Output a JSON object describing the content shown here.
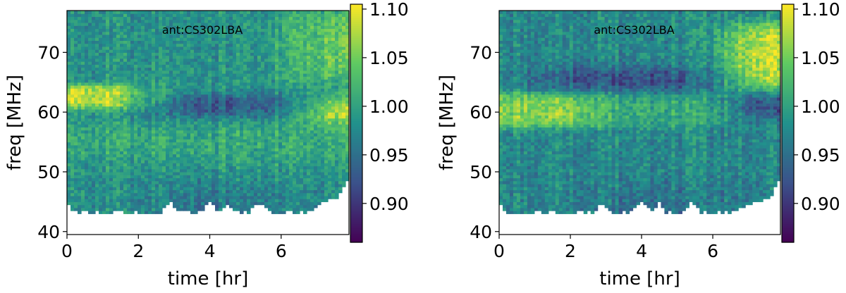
{
  "figure": {
    "colormap": [
      "#440154",
      "#3b528b",
      "#21918c",
      "#5ec962",
      "#fde725"
    ]
  },
  "chart_data": [
    {
      "type": "heatmap",
      "title": "",
      "annotation": "ant:CS302LBA",
      "xlabel": "time [hr]",
      "ylabel": "freq [MHz]",
      "xlim": [
        0,
        7.9
      ],
      "ylim": [
        39.5,
        77
      ],
      "xticks": [
        0,
        2,
        4,
        6
      ],
      "xtick_labels": [
        "0",
        "2",
        "4",
        "6"
      ],
      "yticks": [
        40,
        50,
        60,
        70
      ],
      "ytick_labels": [
        "40",
        "50",
        "60",
        "70"
      ],
      "colorbar": {
        "range": [
          0.86,
          1.105
        ],
        "ticks": [
          0.9,
          0.95,
          1.0,
          1.05,
          1.1
        ],
        "tick_labels": [
          "0.90",
          "0.95",
          "1.00",
          "1.05",
          "1.10"
        ]
      },
      "features": [
        {
          "description": "bright band",
          "freq_range_MHz": [
            60.5,
            65
          ],
          "time_range_hr": [
            0,
            1.5
          ],
          "value": 1.09
        },
        {
          "description": "dark band",
          "freq_range_MHz": [
            59,
            63
          ],
          "time_range_hr": [
            3,
            6
          ],
          "value": 0.92
        },
        {
          "description": "bright patch",
          "freq_range_MHz": [
            58,
            62
          ],
          "time_range_hr": [
            7,
            7.9
          ],
          "value": 1.08
        },
        {
          "description": "bright patch",
          "freq_range_MHz": [
            66,
            76
          ],
          "time_range_hr": [
            6.5,
            7.9
          ],
          "value": 1.06
        }
      ]
    },
    {
      "type": "heatmap",
      "title": "",
      "annotation": "ant:CS302LBA",
      "xlabel": "time [hr]",
      "ylabel": "freq [MHz]",
      "xlim": [
        0,
        7.9
      ],
      "ylim": [
        39.5,
        77
      ],
      "xticks": [
        0,
        2,
        4,
        6
      ],
      "xtick_labels": [
        "0",
        "2",
        "4",
        "6"
      ],
      "yticks": [
        40,
        50,
        60,
        70
      ],
      "ytick_labels": [
        "40",
        "50",
        "60",
        "70"
      ],
      "colorbar": {
        "range": [
          0.86,
          1.105
        ],
        "ticks": [
          0.9,
          0.95,
          1.0,
          1.05,
          1.1
        ],
        "tick_labels": [
          "0.90",
          "0.95",
          "1.00",
          "1.05",
          "1.10"
        ]
      },
      "features": [
        {
          "description": "bright band",
          "freq_range_MHz": [
            58,
            63
          ],
          "time_range_hr": [
            0,
            2.5
          ],
          "value": 1.07
        },
        {
          "description": "dark band",
          "freq_range_MHz": [
            63.5,
            67
          ],
          "time_range_hr": [
            1.5,
            6
          ],
          "value": 0.93
        },
        {
          "description": "bright patch",
          "freq_range_MHz": [
            64,
            74
          ],
          "time_range_hr": [
            6.5,
            7.9
          ],
          "value": 1.09
        },
        {
          "description": "dark patch",
          "freq_range_MHz": [
            59,
            63
          ],
          "time_range_hr": [
            6.8,
            7.9
          ],
          "value": 0.93
        }
      ]
    }
  ]
}
